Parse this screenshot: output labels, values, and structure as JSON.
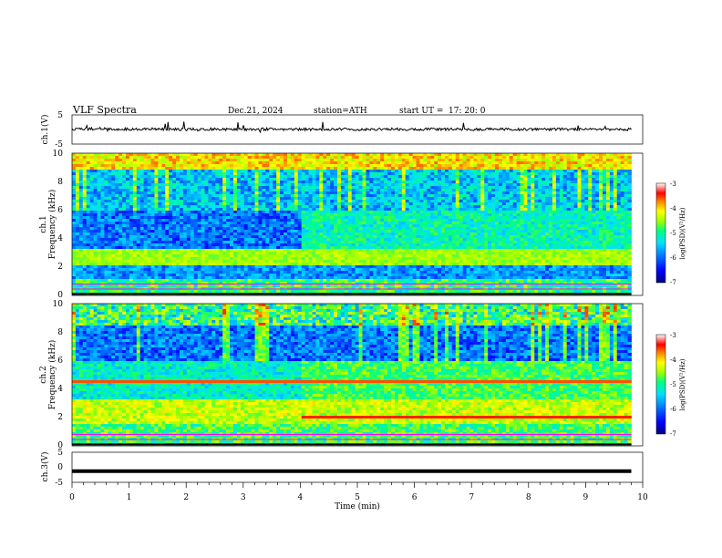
{
  "header": {
    "title": "VLF  Spectra",
    "date": "Dec.21, 2024",
    "station": "station=ATH",
    "start_label": "start  UT  =",
    "start_time": "17: 20: 0"
  },
  "colors": {
    "spectrogram_scale": [
      "#000080",
      "#0000ff",
      "#0080ff",
      "#00e0ff",
      "#00ff80",
      "#a0ff00",
      "#ffff00",
      "#ff8000",
      "#ff0000",
      "#ffffff"
    ],
    "trace": "#000000"
  },
  "chart_data": [
    {
      "type": "line",
      "panel": "ch1-waveform",
      "ylabel": "ch.1(V)",
      "ylim": [
        -5,
        5
      ],
      "yticks": [
        "5",
        "-5"
      ],
      "x": [
        0,
        0.5,
        1,
        1.5,
        2,
        2.5,
        3,
        3.5,
        4,
        4.5,
        5,
        5.5,
        6,
        6.5,
        7,
        7.5,
        8,
        8.5,
        9,
        9.8
      ],
      "values": [
        0,
        0.3,
        0.1,
        0.2,
        0,
        0.1,
        0,
        0.1,
        0,
        0.1,
        0,
        0.1,
        0,
        0.1,
        0,
        0.1,
        0,
        0.1,
        0,
        0
      ]
    },
    {
      "type": "heatmap",
      "panel": "ch1-spectrogram",
      "ylabel": "ch.1",
      "ylabel2": "Frequency  (kHz)",
      "ylim": [
        0,
        10
      ],
      "yticks": [
        "10",
        "8",
        "6",
        "4",
        "2",
        "0"
      ],
      "colorbar": {
        "label": "log(PSD)(V²/Hz)",
        "range": [
          -7,
          -3
        ],
        "ticks": [
          "-3",
          "-4",
          "-5",
          "-6",
          "-7"
        ]
      }
    },
    {
      "type": "heatmap",
      "panel": "ch2-spectrogram",
      "ylabel": "ch.2",
      "ylabel2": "Frequency  (kHz)",
      "ylim": [
        0,
        10
      ],
      "yticks": [
        "10",
        "8",
        "6",
        "4",
        "2",
        "0"
      ],
      "colorbar": {
        "label": "log(PSD)(V²/Hz)",
        "range": [
          -7,
          -3
        ],
        "ticks": [
          "-3",
          "-4",
          "-5",
          "-6",
          "-7"
        ]
      }
    },
    {
      "type": "line",
      "panel": "ch3-waveform",
      "ylabel": "ch.3(V)",
      "ylim": [
        -5,
        5
      ],
      "yticks": [
        "5",
        "0",
        "-5"
      ],
      "x": [
        0,
        9.8
      ],
      "values": [
        -1.3,
        -1.3
      ]
    }
  ],
  "x_axis": {
    "label": "Time  (min)",
    "ticks": [
      "0",
      "1",
      "2",
      "3",
      "4",
      "5",
      "6",
      "7",
      "8",
      "9",
      "10"
    ]
  }
}
